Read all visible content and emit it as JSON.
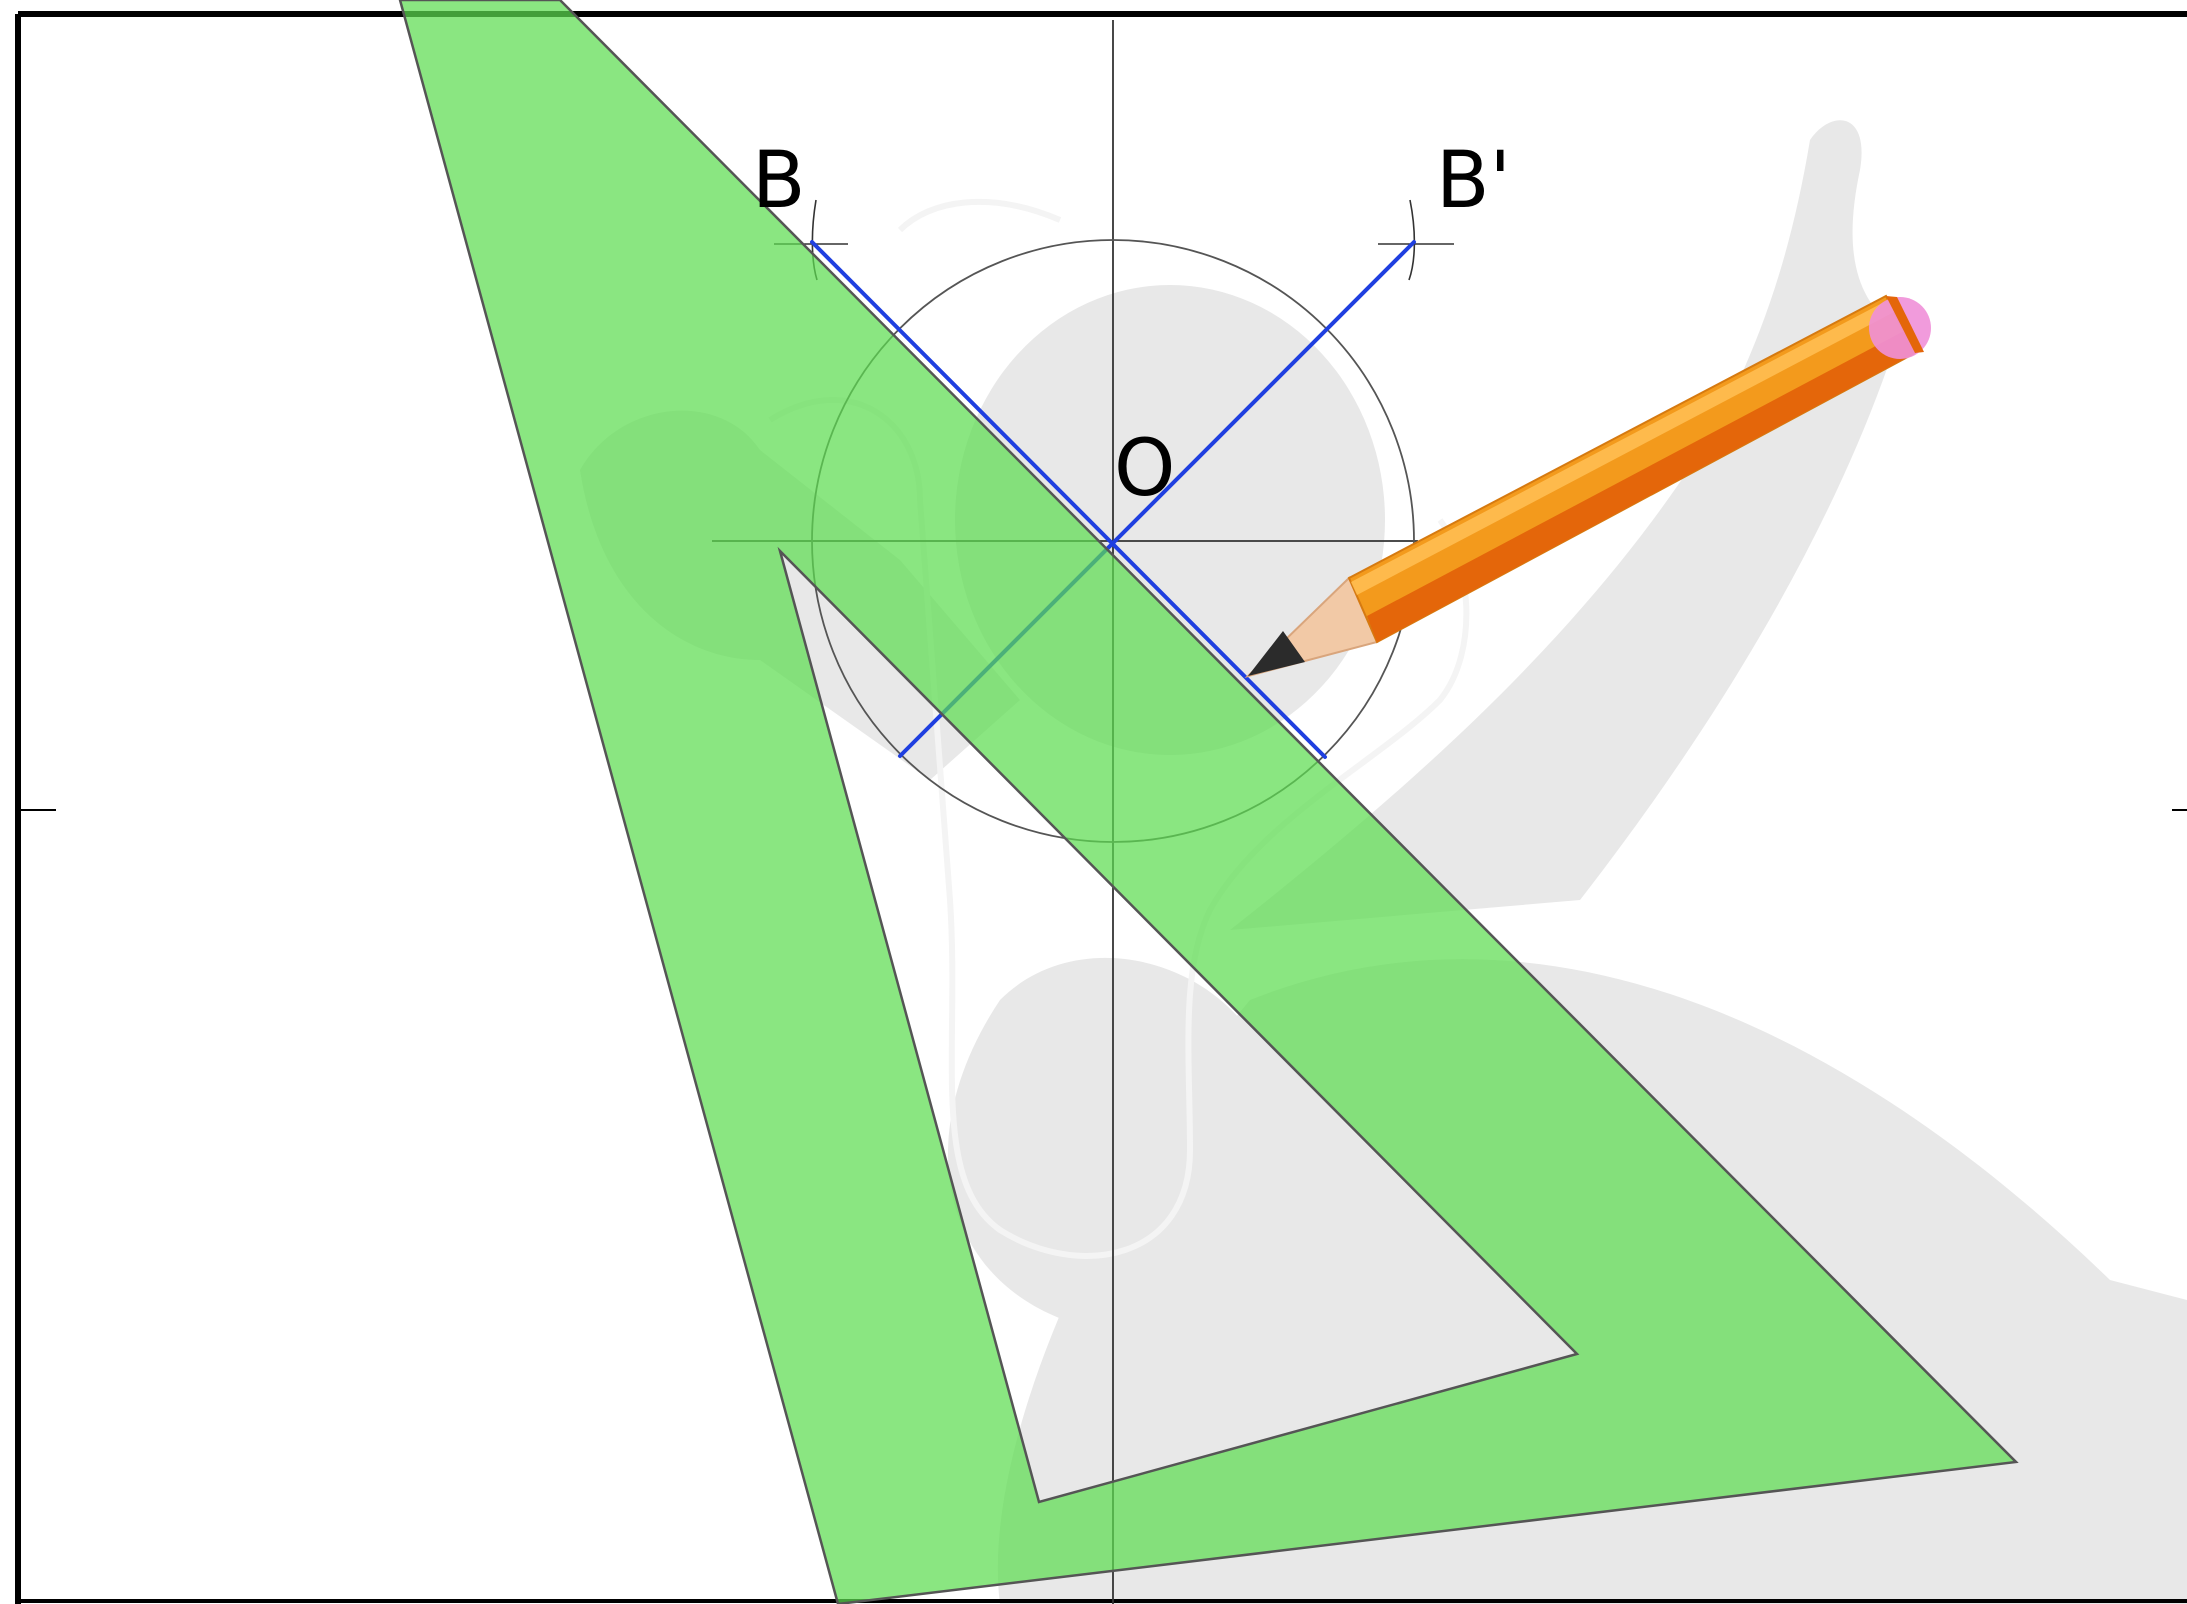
{
  "labels": {
    "point_b": "B",
    "point_b_prime": "B'",
    "point_o": "O"
  },
  "colors": {
    "background": "#ffffff",
    "frame": "#000000",
    "construction_line": "#333333",
    "construction_circle": "#555555",
    "mirror_lines": "#1f3fe0",
    "set_square_fill": "#5ddc50",
    "set_square_stroke": "#555555",
    "watermark_figure": "#d6d6d6",
    "pencil_body": "#f39a1c",
    "pencil_body_dark": "#e4660a",
    "pencil_wood": "#f2c9a6",
    "pencil_graphite": "#2b2b2b",
    "pencil_eraser": "#f090d8"
  },
  "icons": {
    "set_square": "set-square-icon",
    "pencil": "pencil-icon",
    "figure": "figure-silhouette"
  }
}
